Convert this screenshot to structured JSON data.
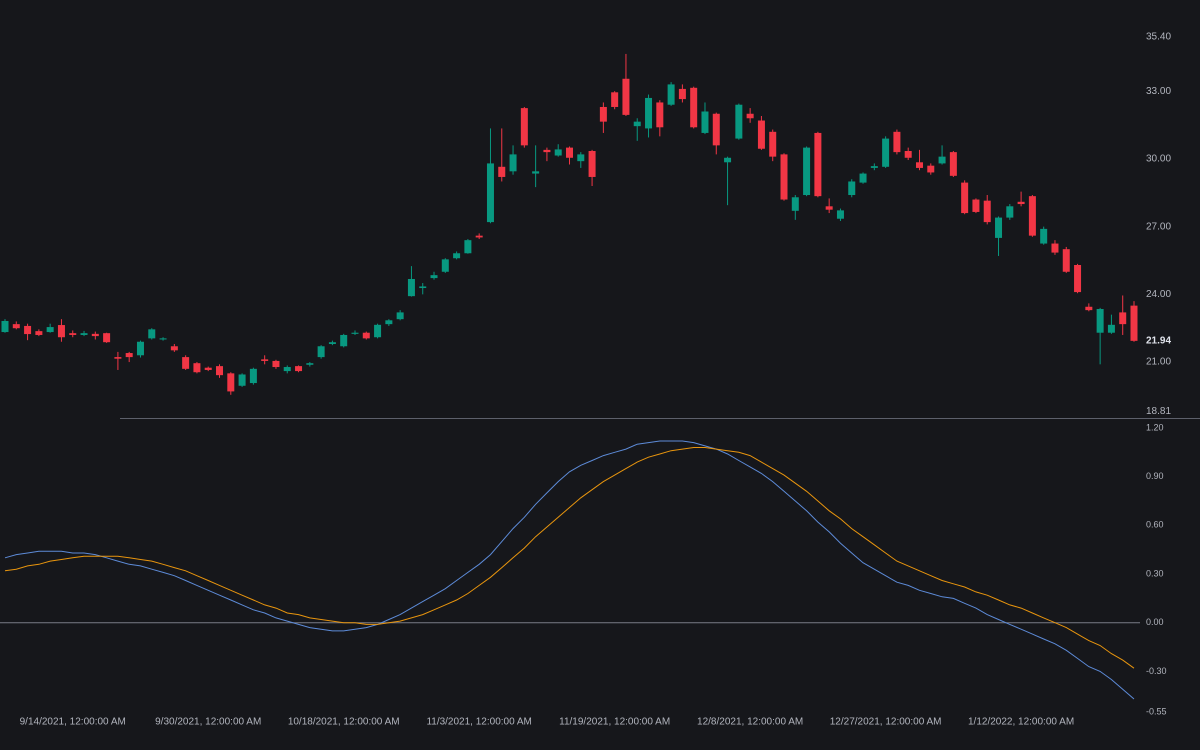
{
  "chart_data": [
    {
      "type": "candlestick",
      "up_color": "#089981",
      "down_color": "#f23645",
      "ylim": [
        18.81,
        35.4
      ],
      "yticks": [
        {
          "value": 18.81,
          "label": "18.81"
        },
        {
          "value": 21,
          "label": "21.00"
        },
        {
          "value": 24,
          "label": "24.00"
        },
        {
          "value": 27,
          "label": "27.00"
        },
        {
          "value": 30,
          "label": "30.00"
        },
        {
          "value": 33,
          "label": "33.00"
        },
        {
          "value": 35.4,
          "label": "35.40"
        }
      ],
      "open": [
        22.33,
        22.68,
        22.6,
        22.37,
        22.33,
        22.64,
        22.28,
        22.2,
        22.25,
        22.28,
        21.22,
        21.4,
        21.3,
        22.05,
        22.0,
        21.7,
        21.22,
        20.95,
        20.75,
        20.82,
        20.5,
        19.95,
        20.07,
        21.12,
        21.05,
        20.6,
        20.82,
        20.88,
        21.22,
        21.8,
        21.7,
        22.25,
        22.3,
        22.1,
        22.68,
        22.9,
        23.92,
        24.28,
        24.72,
        25.0,
        25.6,
        25.82,
        26.6,
        27.2,
        29.65,
        29.45,
        32.25,
        29.35,
        30.4,
        30.15,
        30.5,
        29.9,
        30.35,
        32.3,
        32.95,
        33.55,
        31.45,
        31.35,
        32.5,
        32.4,
        33.1,
        33.15,
        31.15,
        32.0,
        29.85,
        30.9,
        32.0,
        31.7,
        31.2,
        30.2,
        27.7,
        28.4,
        31.15,
        27.9,
        27.35,
        28.4,
        28.95,
        29.6,
        29.65,
        31.2,
        30.35,
        29.85,
        29.7,
        29.8,
        30.3,
        28.95,
        28.2,
        28.15,
        26.5,
        27.4,
        28.1,
        28.35,
        26.25,
        26.25,
        26.0,
        25.3,
        23.45,
        22.3,
        22.3,
        23.2,
        23.5
      ],
      "high": [
        22.9,
        22.8,
        22.7,
        22.45,
        22.7,
        22.9,
        22.4,
        22.38,
        22.35,
        22.3,
        21.45,
        21.45,
        21.95,
        22.5,
        22.1,
        21.8,
        21.3,
        21.0,
        20.8,
        20.9,
        20.55,
        20.5,
        20.75,
        21.3,
        21.1,
        20.85,
        20.85,
        21.0,
        21.75,
        21.95,
        22.25,
        22.4,
        22.35,
        22.7,
        22.9,
        23.3,
        25.25,
        24.5,
        25.0,
        25.6,
        25.9,
        26.45,
        26.7,
        31.35,
        31.35,
        30.6,
        32.3,
        30.6,
        30.5,
        30.65,
        30.55,
        30.3,
        30.4,
        32.5,
        33.0,
        34.65,
        31.8,
        32.85,
        32.6,
        33.4,
        33.3,
        33.2,
        32.5,
        32.05,
        30.1,
        32.45,
        32.25,
        31.9,
        31.3,
        30.25,
        28.4,
        30.55,
        31.2,
        28.25,
        27.8,
        29.1,
        29.4,
        29.8,
        31.0,
        31.3,
        30.5,
        30.4,
        29.8,
        30.6,
        30.35,
        29.05,
        28.25,
        28.4,
        27.45,
        28.0,
        28.55,
        28.4,
        27.0,
        26.4,
        26.1,
        25.35,
        23.6,
        23.4,
        23.1,
        23.95,
        23.7
      ],
      "low": [
        22.3,
        22.45,
        21.97,
        22.15,
        22.3,
        21.9,
        22.1,
        22.15,
        22.0,
        21.85,
        20.65,
        21.0,
        21.2,
        22.0,
        21.95,
        21.45,
        20.65,
        20.5,
        20.6,
        20.3,
        19.55,
        19.9,
        20.0,
        20.9,
        20.7,
        20.5,
        20.55,
        20.8,
        21.15,
        21.75,
        21.65,
        22.2,
        22.0,
        22.05,
        22.6,
        22.85,
        23.9,
        24.0,
        24.65,
        24.95,
        25.55,
        25.8,
        26.45,
        27.15,
        29.0,
        29.3,
        30.5,
        28.75,
        29.9,
        30.1,
        29.75,
        29.6,
        28.8,
        31.15,
        32.2,
        31.9,
        30.8,
        30.95,
        31.0,
        32.35,
        32.5,
        31.35,
        31.1,
        30.2,
        27.95,
        30.85,
        31.6,
        30.4,
        29.9,
        28.15,
        27.3,
        28.35,
        28.3,
        27.6,
        27.25,
        28.3,
        28.9,
        29.5,
        29.6,
        30.2,
        29.95,
        29.5,
        29.3,
        29.75,
        29.2,
        27.55,
        27.6,
        27.1,
        25.7,
        27.3,
        27.9,
        26.55,
        26.2,
        25.75,
        24.95,
        24.05,
        23.25,
        20.9,
        22.25,
        22.2,
        21.9
      ],
      "close": [
        22.82,
        22.5,
        22.24,
        22.2,
        22.55,
        22.1,
        22.2,
        22.28,
        22.15,
        21.88,
        21.15,
        21.22,
        21.9,
        22.45,
        22.05,
        21.52,
        20.7,
        20.55,
        20.65,
        20.42,
        19.7,
        20.45,
        20.7,
        21.05,
        20.78,
        20.78,
        20.6,
        20.95,
        21.7,
        21.88,
        22.2,
        22.3,
        22.05,
        22.65,
        22.85,
        23.2,
        24.68,
        24.35,
        24.85,
        25.55,
        25.82,
        26.4,
        26.52,
        29.8,
        29.2,
        30.2,
        30.6,
        29.45,
        30.3,
        30.42,
        30.05,
        30.2,
        29.2,
        31.65,
        32.3,
        31.95,
        31.65,
        32.7,
        31.4,
        33.3,
        32.65,
        31.4,
        32.1,
        30.6,
        30.05,
        32.4,
        31.8,
        30.45,
        30.1,
        28.2,
        28.3,
        30.5,
        28.35,
        27.75,
        27.72,
        29.0,
        29.35,
        29.68,
        30.9,
        30.3,
        30.05,
        29.6,
        29.4,
        30.1,
        29.25,
        27.6,
        27.65,
        27.2,
        27.4,
        27.9,
        28.0,
        26.6,
        26.9,
        25.85,
        25.0,
        24.1,
        23.3,
        23.35,
        22.65,
        22.68,
        21.94
      ]
    },
    {
      "type": "line",
      "categories": [
        null,
        null,
        null,
        null,
        null,
        null,
        "9/14/2021, 12:00:00 AM",
        null,
        null,
        null,
        null,
        null,
        null,
        null,
        null,
        null,
        null,
        null,
        "9/30/2021, 12:00:00 AM",
        null,
        null,
        null,
        null,
        null,
        null,
        null,
        null,
        null,
        null,
        null,
        "10/18/2021, 12:00:00 AM",
        null,
        null,
        null,
        null,
        null,
        null,
        null,
        null,
        null,
        null,
        null,
        "11/3/2021, 12:00:00 AM",
        null,
        null,
        null,
        null,
        null,
        null,
        null,
        null,
        null,
        null,
        null,
        "11/19/2021, 12:00:00 AM",
        null,
        null,
        null,
        null,
        null,
        null,
        null,
        null,
        null,
        null,
        null,
        "12/8/2021, 12:00:00 AM",
        null,
        null,
        null,
        null,
        null,
        null,
        null,
        null,
        null,
        null,
        null,
        "12/27/2021, 12:00:00 AM",
        null,
        null,
        null,
        null,
        null,
        null,
        null,
        null,
        null,
        null,
        null,
        "1/12/2022, 12:00:00 AM",
        null,
        null,
        null,
        null,
        null,
        null,
        null,
        null,
        null,
        null
      ],
      "ylim": [
        -0.55,
        1.2
      ],
      "yticks": [
        {
          "value": 1.2,
          "label": "1.20"
        },
        {
          "value": 0.9,
          "label": "0.90"
        },
        {
          "value": 0.6,
          "label": "0.60"
        },
        {
          "value": 0.3,
          "label": "0.30"
        },
        {
          "value": 0,
          "label": "0.00"
        },
        {
          "value": -0.3,
          "label": "-0.30"
        },
        {
          "value": -0.55,
          "label": "-0.55"
        }
      ],
      "series": [
        {
          "color": "#5d8bd8",
          "values": [
            0.4,
            0.42,
            0.43,
            0.44,
            0.44,
            0.44,
            0.43,
            0.43,
            0.42,
            0.4,
            0.38,
            0.36,
            0.35,
            0.33,
            0.31,
            0.29,
            0.26,
            0.23,
            0.2,
            0.17,
            0.14,
            0.11,
            0.08,
            0.06,
            0.03,
            0.01,
            -0.01,
            -0.03,
            -0.04,
            -0.05,
            -0.05,
            -0.04,
            -0.03,
            -0.01,
            0.02,
            0.05,
            0.09,
            0.13,
            0.17,
            0.21,
            0.26,
            0.31,
            0.36,
            0.42,
            0.5,
            0.58,
            0.65,
            0.73,
            0.8,
            0.87,
            0.93,
            0.97,
            1.0,
            1.03,
            1.05,
            1.07,
            1.1,
            1.11,
            1.12,
            1.12,
            1.12,
            1.11,
            1.09,
            1.07,
            1.04,
            1.0,
            0.96,
            0.92,
            0.87,
            0.81,
            0.75,
            0.69,
            0.62,
            0.56,
            0.49,
            0.43,
            0.37,
            0.33,
            0.29,
            0.25,
            0.23,
            0.2,
            0.18,
            0.16,
            0.15,
            0.12,
            0.09,
            0.05,
            0.02,
            -0.01,
            -0.04,
            -0.07,
            -0.1,
            -0.13,
            -0.17,
            -0.22,
            -0.27,
            -0.3,
            -0.35,
            -0.41,
            -0.47
          ]
        },
        {
          "color": "#e8950e",
          "values": [
            0.32,
            0.33,
            0.35,
            0.36,
            0.38,
            0.39,
            0.4,
            0.41,
            0.41,
            0.41,
            0.41,
            0.4,
            0.39,
            0.38,
            0.36,
            0.34,
            0.32,
            0.29,
            0.26,
            0.23,
            0.2,
            0.17,
            0.14,
            0.11,
            0.09,
            0.06,
            0.05,
            0.03,
            0.02,
            0.01,
            0.0,
            0.0,
            -0.01,
            -0.01,
            0.0,
            0.01,
            0.03,
            0.05,
            0.08,
            0.11,
            0.14,
            0.18,
            0.23,
            0.28,
            0.34,
            0.4,
            0.46,
            0.53,
            0.59,
            0.65,
            0.71,
            0.77,
            0.82,
            0.87,
            0.91,
            0.95,
            0.99,
            1.02,
            1.04,
            1.06,
            1.07,
            1.08,
            1.08,
            1.07,
            1.06,
            1.05,
            1.03,
            0.99,
            0.95,
            0.91,
            0.86,
            0.81,
            0.75,
            0.69,
            0.64,
            0.58,
            0.53,
            0.48,
            0.43,
            0.38,
            0.35,
            0.32,
            0.29,
            0.26,
            0.24,
            0.22,
            0.19,
            0.17,
            0.14,
            0.11,
            0.09,
            0.06,
            0.03,
            0.0,
            -0.03,
            -0.07,
            -0.11,
            -0.14,
            -0.19,
            -0.23,
            -0.28
          ]
        }
      ]
    }
  ]
}
